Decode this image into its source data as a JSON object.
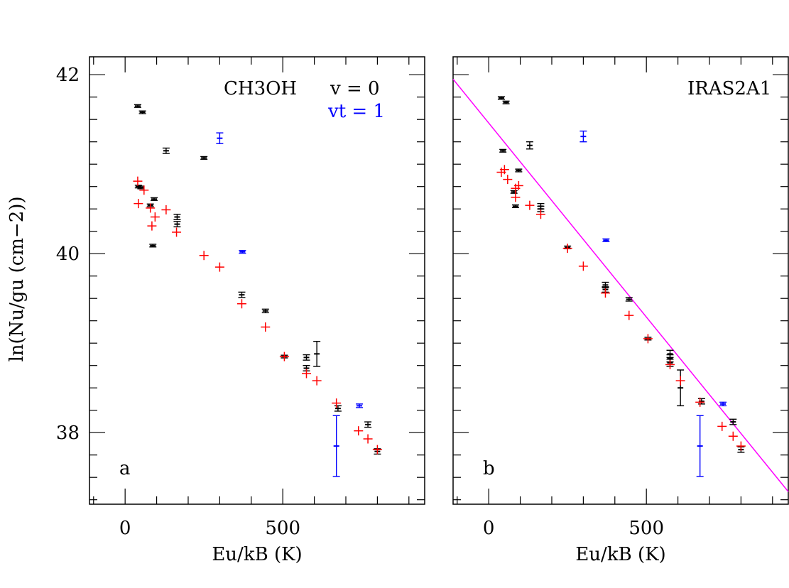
{
  "figure": {
    "ylabel": "ln(Nu/gu (cm−2))",
    "xlabel": "Eu/kB (K)"
  },
  "colors": {
    "v0": "#000000",
    "vt1": "#0000ff",
    "model": "#ff0000",
    "fit": "#ff00ff"
  },
  "chart_data": [
    {
      "type": "scatter",
      "panel_tag": "a",
      "annotations": {
        "molecule": "CH3OH",
        "v0": "v = 0",
        "vt1": "vt = 1"
      },
      "xlabel": "Eu/kB (K)",
      "ylabel": "ln(Nu/gu (cm−2))",
      "xlim": [
        -113,
        950
      ],
      "ylim": [
        37.2,
        42.2
      ],
      "xticks": [
        0,
        500
      ],
      "yticks": [
        38,
        40,
        42
      ],
      "series": [
        {
          "key": "v0",
          "points": [
            {
              "x": 40,
              "y": 41.65,
              "err": 0.015
            },
            {
              "x": 55,
              "y": 41.58,
              "err": 0.015
            },
            {
              "x": 130,
              "y": 41.15,
              "err": 0.03
            },
            {
              "x": 250,
              "y": 41.07,
              "err": 0.015
            },
            {
              "x": 42,
              "y": 40.75,
              "err": 0.015
            },
            {
              "x": 50,
              "y": 40.74,
              "err": 0.015
            },
            {
              "x": 80,
              "y": 40.54,
              "err": 0.015
            },
            {
              "x": 92,
              "y": 40.61,
              "err": 0.015
            },
            {
              "x": 165,
              "y": 40.41,
              "err": 0.03
            },
            {
              "x": 165,
              "y": 40.33,
              "err": 0.03
            },
            {
              "x": 88,
              "y": 40.09,
              "err": 0.015
            },
            {
              "x": 370,
              "y": 39.54,
              "err": 0.03
            },
            {
              "x": 445,
              "y": 39.36,
              "err": 0.02
            },
            {
              "x": 575,
              "y": 38.84,
              "err": 0.03
            },
            {
              "x": 575,
              "y": 38.72,
              "err": 0.03
            },
            {
              "x": 608,
              "y": 38.88,
              "err": 0.14
            },
            {
              "x": 675,
              "y": 38.27,
              "err": 0.03
            },
            {
              "x": 770,
              "y": 38.09,
              "err": 0.03
            },
            {
              "x": 800,
              "y": 37.79,
              "err": 0.03
            },
            {
              "x": 505,
              "y": 38.85,
              "err": 0.015
            }
          ]
        },
        {
          "key": "vt1",
          "points": [
            {
              "x": 300,
              "y": 41.29,
              "err": 0.06
            },
            {
              "x": 372,
              "y": 40.02,
              "err": 0.015
            },
            {
              "x": 743,
              "y": 38.3,
              "err": 0.02
            },
            {
              "x": 670,
              "y": 37.85,
              "err": 0.34
            }
          ]
        },
        {
          "key": "model",
          "points": [
            {
              "x": 40,
              "y": 40.81
            },
            {
              "x": 60,
              "y": 40.71
            },
            {
              "x": 42,
              "y": 40.56
            },
            {
              "x": 80,
              "y": 40.51
            },
            {
              "x": 95,
              "y": 40.41
            },
            {
              "x": 85,
              "y": 40.31
            },
            {
              "x": 130,
              "y": 40.49
            },
            {
              "x": 163,
              "y": 40.24
            },
            {
              "x": 250,
              "y": 39.98
            },
            {
              "x": 300,
              "y": 39.85
            },
            {
              "x": 370,
              "y": 39.44
            },
            {
              "x": 445,
              "y": 39.18
            },
            {
              "x": 505,
              "y": 38.85
            },
            {
              "x": 575,
              "y": 38.66
            },
            {
              "x": 608,
              "y": 38.58
            },
            {
              "x": 670,
              "y": 38.33
            },
            {
              "x": 740,
              "y": 38.02
            },
            {
              "x": 770,
              "y": 37.93
            },
            {
              "x": 800,
              "y": 37.81
            }
          ]
        }
      ]
    },
    {
      "type": "scatter",
      "panel_tag": "b",
      "annotations": {
        "source": "IRAS2A1"
      },
      "xlabel": "Eu/kB (K)",
      "xlim": [
        -113,
        950
      ],
      "ylim": [
        37.2,
        42.2
      ],
      "xticks": [
        0,
        500
      ],
      "yticks": [
        38,
        40,
        42
      ],
      "fit_line": {
        "x": [
          -113,
          950
        ],
        "y": [
          41.95,
          37.34
        ]
      },
      "series": [
        {
          "key": "v0",
          "points": [
            {
              "x": 40,
              "y": 41.74,
              "err": 0.015
            },
            {
              "x": 55,
              "y": 41.69,
              "err": 0.015
            },
            {
              "x": 130,
              "y": 41.21,
              "err": 0.04
            },
            {
              "x": 45,
              "y": 41.15,
              "err": 0.015
            },
            {
              "x": 95,
              "y": 40.93,
              "err": 0.015
            },
            {
              "x": 80,
              "y": 40.69,
              "err": 0.015
            },
            {
              "x": 85,
              "y": 40.53,
              "err": 0.015
            },
            {
              "x": 165,
              "y": 40.53,
              "err": 0.03
            },
            {
              "x": 165,
              "y": 40.5,
              "err": 0.03
            },
            {
              "x": 250,
              "y": 40.07,
              "err": 0.015
            },
            {
              "x": 370,
              "y": 39.65,
              "err": 0.03
            },
            {
              "x": 370,
              "y": 39.6,
              "err": 0.03
            },
            {
              "x": 445,
              "y": 39.49,
              "err": 0.02
            },
            {
              "x": 505,
              "y": 39.05,
              "err": 0.015
            },
            {
              "x": 575,
              "y": 38.88,
              "err": 0.04
            },
            {
              "x": 575,
              "y": 38.83,
              "err": 0.04
            },
            {
              "x": 575,
              "y": 38.78,
              "err": 0.04
            },
            {
              "x": 608,
              "y": 38.5,
              "err": 0.2
            },
            {
              "x": 675,
              "y": 38.35,
              "err": 0.03
            },
            {
              "x": 775,
              "y": 38.12,
              "err": 0.03
            },
            {
              "x": 800,
              "y": 37.81,
              "err": 0.03
            }
          ]
        },
        {
          "key": "vt1",
          "points": [
            {
              "x": 300,
              "y": 41.31,
              "err": 0.06
            },
            {
              "x": 372,
              "y": 40.15,
              "err": 0.015
            },
            {
              "x": 743,
              "y": 38.32,
              "err": 0.02
            },
            {
              "x": 670,
              "y": 37.85,
              "err": 0.34
            }
          ]
        },
        {
          "key": "model",
          "points": [
            {
              "x": 40,
              "y": 40.91
            },
            {
              "x": 50,
              "y": 40.94
            },
            {
              "x": 60,
              "y": 40.83
            },
            {
              "x": 85,
              "y": 40.73
            },
            {
              "x": 95,
              "y": 40.76
            },
            {
              "x": 85,
              "y": 40.63
            },
            {
              "x": 130,
              "y": 40.54
            },
            {
              "x": 165,
              "y": 40.44
            },
            {
              "x": 250,
              "y": 40.06
            },
            {
              "x": 300,
              "y": 39.86
            },
            {
              "x": 370,
              "y": 39.56
            },
            {
              "x": 445,
              "y": 39.31
            },
            {
              "x": 505,
              "y": 39.05
            },
            {
              "x": 575,
              "y": 38.76
            },
            {
              "x": 608,
              "y": 38.58
            },
            {
              "x": 670,
              "y": 38.34
            },
            {
              "x": 740,
              "y": 38.07
            },
            {
              "x": 775,
              "y": 37.96
            },
            {
              "x": 800,
              "y": 37.85
            }
          ]
        }
      ]
    }
  ]
}
